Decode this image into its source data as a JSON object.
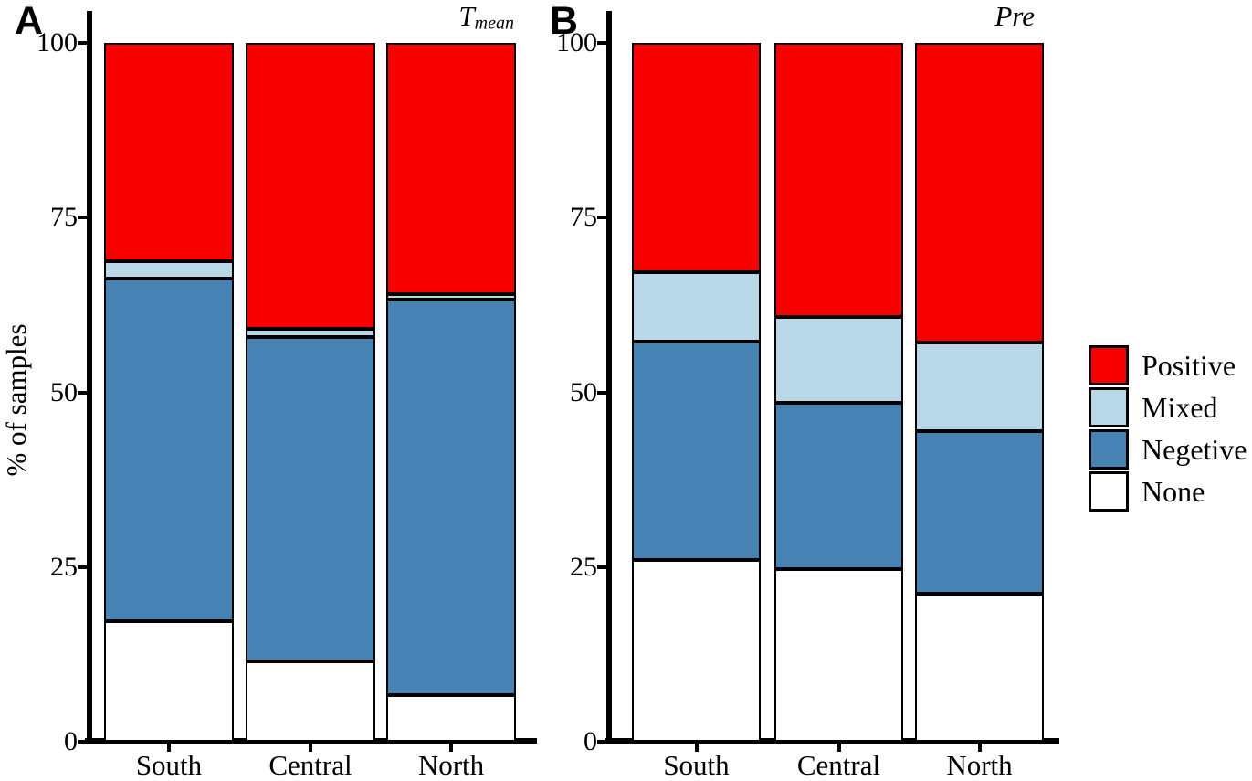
{
  "figure": {
    "panels": [
      {
        "label": "A",
        "title_main": "T",
        "title_sub": "mean"
      },
      {
        "label": "B",
        "title_main": "Pre",
        "title_sub": ""
      }
    ],
    "ylabel": "% of samples"
  },
  "legend": {
    "items": [
      {
        "label": "Positive",
        "color": "#F80000"
      },
      {
        "label": "Mixed",
        "color": "#B8D8E8"
      },
      {
        "label": "Negetive",
        "color": "#4682B4"
      },
      {
        "label": "None",
        "color": "#FFFFFF"
      }
    ]
  },
  "colors": {
    "positive": "#F80000",
    "mixed": "#B8D8E8",
    "negative": "#4682B4",
    "none": "#FFFFFF",
    "axis": "#000000"
  },
  "chart_data": [
    {
      "type": "bar",
      "subtype": "stacked-percentage",
      "panel": "A",
      "title": "Tmean",
      "categories": [
        "South",
        "Central",
        "North"
      ],
      "series": [
        {
          "name": "None",
          "color": "#FFFFFF",
          "values": [
            17.3,
            11.5,
            6.7
          ]
        },
        {
          "name": "Negetive",
          "color": "#4682B4",
          "values": [
            49.0,
            46.4,
            56.6
          ]
        },
        {
          "name": "Mixed",
          "color": "#B8D8E8",
          "values": [
            2.4,
            1.2,
            0.8
          ]
        },
        {
          "name": "Positive",
          "color": "#F80000",
          "values": [
            31.3,
            40.9,
            35.9
          ]
        }
      ],
      "xlabel": "",
      "ylabel": "% of samples",
      "yticks": [
        0,
        25,
        50,
        75,
        100
      ],
      "ylim": [
        0,
        100
      ],
      "grid": false,
      "legend_position": "right-of-panel-B"
    },
    {
      "type": "bar",
      "subtype": "stacked-percentage",
      "panel": "B",
      "title": "Pre",
      "categories": [
        "South",
        "Central",
        "North"
      ],
      "series": [
        {
          "name": "None",
          "color": "#FFFFFF",
          "values": [
            26.0,
            24.7,
            21.2
          ]
        },
        {
          "name": "Negetive",
          "color": "#4682B4",
          "values": [
            31.2,
            23.8,
            23.3
          ]
        },
        {
          "name": "Mixed",
          "color": "#B8D8E8",
          "values": [
            10.0,
            12.3,
            12.6
          ]
        },
        {
          "name": "Positive",
          "color": "#F80000",
          "values": [
            32.8,
            39.2,
            42.9
          ]
        }
      ],
      "xlabel": "",
      "ylabel": "",
      "yticks": [
        0,
        25,
        50,
        75,
        100
      ],
      "ylim": [
        0,
        100
      ],
      "grid": false,
      "legend_position": "right"
    }
  ]
}
